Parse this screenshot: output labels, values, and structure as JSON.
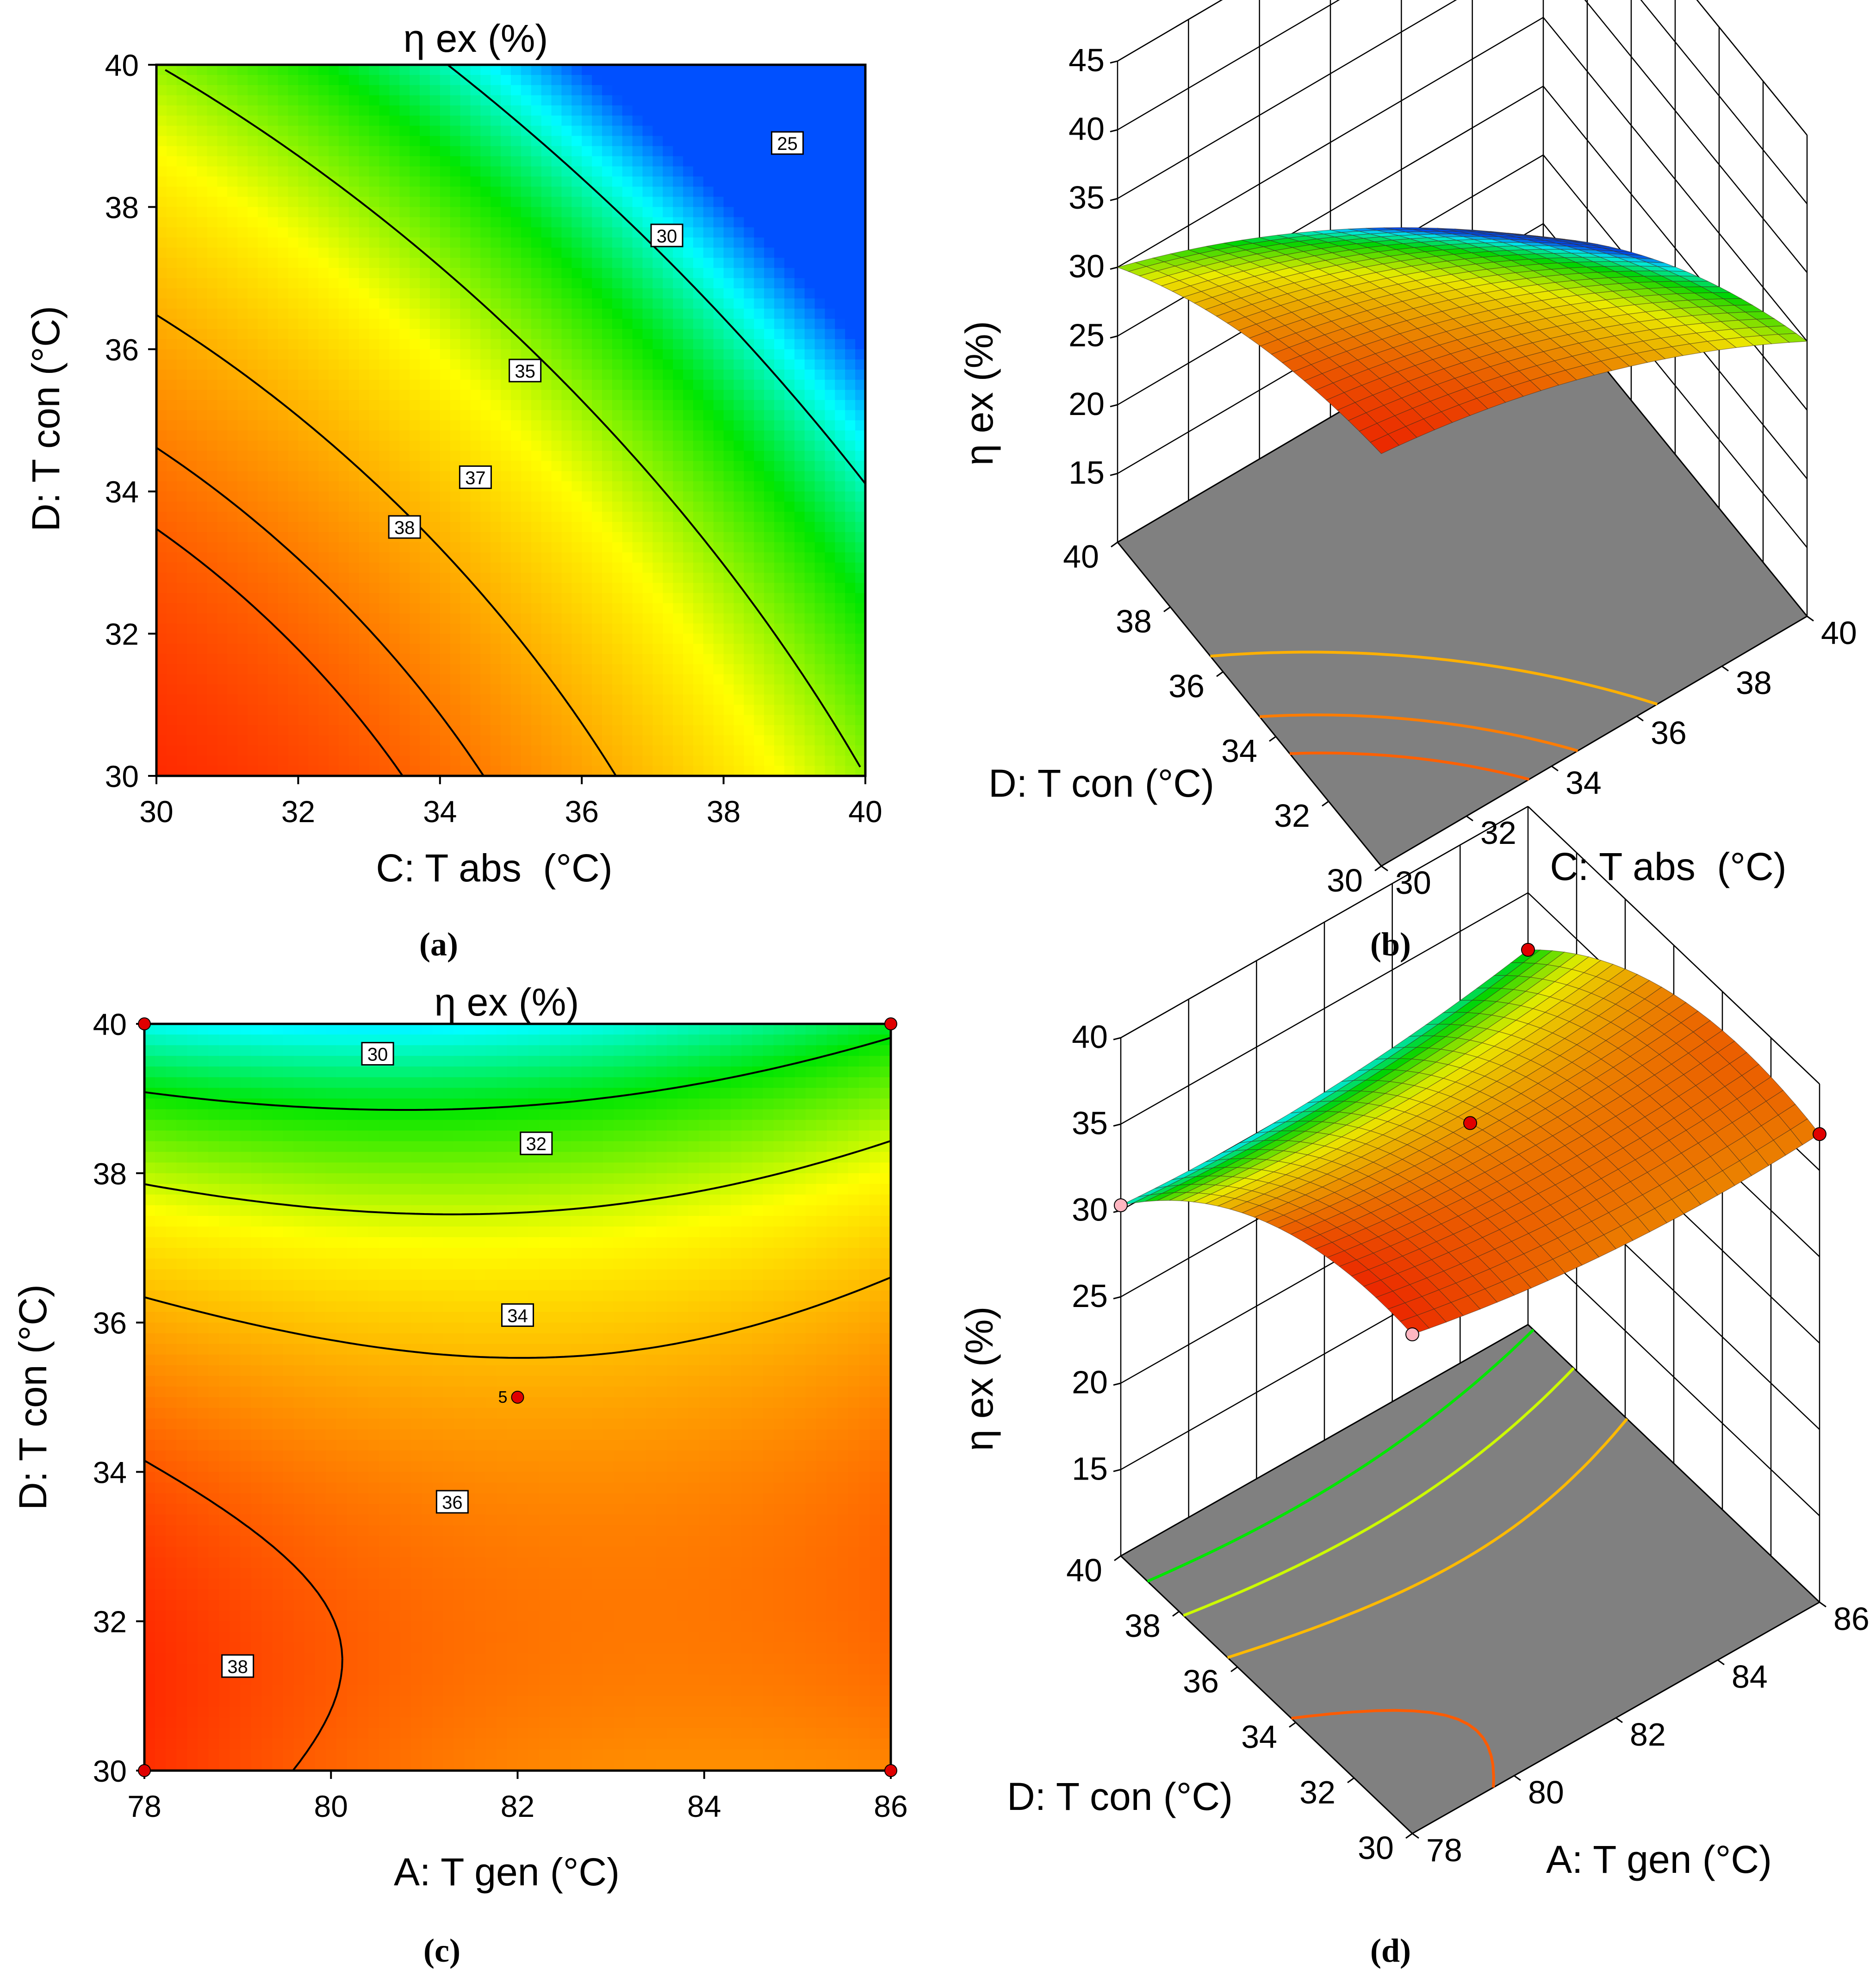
{
  "figure": {
    "panel_labels": [
      "(a)",
      "(b)",
      "(c)",
      "(d)"
    ]
  },
  "colors": {
    "red": "#ff2a00",
    "orange": "#ff8c00",
    "yellow": "#ffff00",
    "green": "#00e600",
    "cyan": "#00ffff",
    "blue": "#0050ff",
    "floor": "#808080",
    "contour_line": "#000000",
    "design_point": "#e00000",
    "design_point_light": "#ffb6c1"
  },
  "chart_data": [
    {
      "id": "a",
      "type": "heatmap",
      "title": "η ex (%)",
      "xlabel": "C: T abs  (°C)",
      "ylabel": "D: T con (°C)",
      "xlim": [
        30,
        40
      ],
      "ylim": [
        30,
        40
      ],
      "xticks": [
        "30",
        "32",
        "34",
        "36",
        "38",
        "40"
      ],
      "yticks": [
        "30",
        "32",
        "34",
        "36",
        "38",
        "40"
      ],
      "contour_levels": [
        25,
        30,
        35,
        37,
        38
      ],
      "contour_labels": [
        {
          "text": "25",
          "x": 38.9,
          "y": 38.9
        },
        {
          "text": "30",
          "x": 37.2,
          "y": 37.6
        },
        {
          "text": "35",
          "x": 35.2,
          "y": 35.7
        },
        {
          "text": "37",
          "x": 34.5,
          "y": 34.2
        },
        {
          "text": "38",
          "x": 33.5,
          "y": 33.5
        }
      ],
      "value_range": [
        22,
        40
      ]
    },
    {
      "id": "b",
      "type": "surface",
      "zlabel": "η ex (%)",
      "xlabel": "C: T abs  (°C)",
      "ylabel": "D: T con (°C)",
      "xticks": [
        "30",
        "32",
        "34",
        "36",
        "38",
        "40"
      ],
      "yticks": [
        "30",
        "32",
        "34",
        "36",
        "38",
        "40"
      ],
      "zticks": [
        "15",
        "20",
        "25",
        "30",
        "35",
        "40",
        "45"
      ],
      "zlim": [
        10,
        45
      ]
    },
    {
      "id": "c",
      "type": "heatmap",
      "title": "η ex (%)",
      "xlabel": "A: T gen (°C)",
      "ylabel": "D: T con (°C)",
      "xlim": [
        78,
        86
      ],
      "ylim": [
        30,
        40
      ],
      "xticks": [
        "78",
        "80",
        "82",
        "84",
        "86"
      ],
      "yticks": [
        "30",
        "32",
        "34",
        "36",
        "38",
        "40"
      ],
      "contour_levels": [
        30,
        32,
        34,
        36,
        38
      ],
      "contour_labels": [
        {
          "text": "30",
          "x": 80.5,
          "y": 39.6
        },
        {
          "text": "32",
          "x": 82.2,
          "y": 38.4
        },
        {
          "text": "34",
          "x": 82.0,
          "y": 36.1
        },
        {
          "text": "36",
          "x": 81.3,
          "y": 33.6
        },
        {
          "text": "38",
          "x": 79.0,
          "y": 31.4
        }
      ],
      "design_points": [
        {
          "x": 78,
          "y": 40
        },
        {
          "x": 86,
          "y": 40
        },
        {
          "x": 78,
          "y": 30
        },
        {
          "x": 86,
          "y": 30
        },
        {
          "x": 82,
          "y": 35,
          "label": "5"
        }
      ],
      "value_range": [
        29,
        39
      ]
    },
    {
      "id": "d",
      "type": "surface",
      "zlabel": "η ex (%)",
      "xlabel": "A: T gen (°C)",
      "ylabel": "D: T con (°C)",
      "xticks": [
        "78",
        "80",
        "82",
        "84",
        "86"
      ],
      "yticks": [
        "30",
        "32",
        "34",
        "36",
        "38",
        "40"
      ],
      "zticks": [
        "15",
        "20",
        "25",
        "30",
        "35",
        "40"
      ],
      "zlim": [
        10,
        40
      ]
    }
  ]
}
